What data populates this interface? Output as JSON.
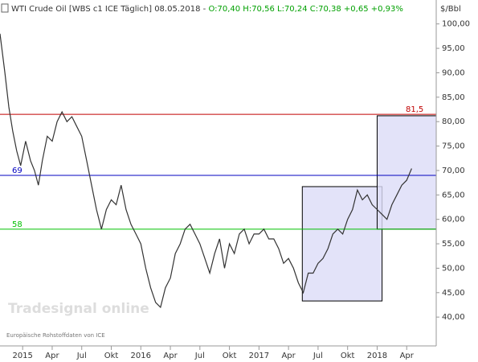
{
  "chart_data": {
    "type": "line",
    "title": "WTI Crude Oil [WBS c1 ICE  Täglich] 08.05.2018 -",
    "quote": "O:70,40 H:70,56 L:70,24 C:70,38 +0,65 +0,93%",
    "y_unit": "$/Bbl",
    "watermark": "Tradesignal online",
    "source": "Europäische Rohstoffdaten von ICE",
    "xlim": [
      -2.3,
      42
    ],
    "ylim": [
      34.1,
      101.6
    ],
    "xticks": [
      {
        "value": 0,
        "label": "2015"
      },
      {
        "value": 3,
        "label": "Apr"
      },
      {
        "value": 6,
        "label": "Jul"
      },
      {
        "value": 9,
        "label": "Okt"
      },
      {
        "value": 12,
        "label": "2016"
      },
      {
        "value": 15,
        "label": "Apr"
      },
      {
        "value": 18,
        "label": "Jul"
      },
      {
        "value": 21,
        "label": "Okt"
      },
      {
        "value": 24,
        "label": "2017"
      },
      {
        "value": 27,
        "label": "Apr"
      },
      {
        "value": 30,
        "label": "Jul"
      },
      {
        "value": 33,
        "label": "Okt"
      },
      {
        "value": 36,
        "label": "2018"
      },
      {
        "value": 39,
        "label": "Apr"
      }
    ],
    "yticks": [
      {
        "value": 40,
        "label": "40,00"
      },
      {
        "value": 45,
        "label": "45,00"
      },
      {
        "value": 50,
        "label": "50,00"
      },
      {
        "value": 55,
        "label": "55,00"
      },
      {
        "value": 60,
        "label": "60,00"
      },
      {
        "value": 65,
        "label": "65,00"
      },
      {
        "value": 70,
        "label": "70,00"
      },
      {
        "value": 75,
        "label": "75,00"
      },
      {
        "value": 80,
        "label": "80,00"
      },
      {
        "value": 85,
        "label": "85,00"
      },
      {
        "value": 90,
        "label": "90,00"
      },
      {
        "value": 95,
        "label": "95,00"
      },
      {
        "value": 100,
        "label": "100,00"
      }
    ],
    "ref_lines": [
      {
        "value": 81.5,
        "label": "81,5",
        "color": "#c00000"
      },
      {
        "value": 69,
        "label": "69",
        "color": "#0000c0"
      },
      {
        "value": 58,
        "label": "58",
        "color": "#00c000"
      }
    ],
    "boxes": [
      {
        "x": [
          28.4,
          36.5
        ],
        "y": [
          43.3,
          66.7
        ]
      },
      {
        "x": [
          36.0,
          42
        ],
        "y": [
          58.0,
          81.2
        ]
      }
    ],
    "series": [
      {
        "name": "WTI Crude Oil",
        "color": "#333333",
        "x": [
          -2.3,
          -1.8,
          -1.4,
          -1,
          -0.6,
          -0.2,
          0.3,
          0.8,
          1.2,
          1.6,
          2,
          2.5,
          3,
          3.5,
          4,
          4.5,
          5,
          5.5,
          6,
          6.5,
          7,
          7.5,
          8,
          8.5,
          9,
          9.5,
          10,
          10.5,
          11,
          11.5,
          12,
          12.5,
          13,
          13.5,
          14,
          14.5,
          15,
          15.5,
          16,
          16.5,
          17,
          17.5,
          18,
          18.5,
          19,
          19.5,
          20,
          20.5,
          21,
          21.5,
          22,
          22.5,
          23,
          23.5,
          24,
          24.5,
          25,
          25.5,
          26,
          26.5,
          27,
          27.5,
          28,
          28.5,
          29,
          29.5,
          30,
          30.5,
          31,
          31.5,
          32,
          32.5,
          33,
          33.5,
          34,
          34.5,
          35,
          35.5,
          36,
          36.5,
          37,
          37.5,
          38,
          38.5,
          39,
          39.5
        ],
        "values": [
          98,
          90,
          83,
          78,
          74,
          71,
          76,
          72,
          70,
          67,
          72,
          77,
          76,
          80,
          82,
          80,
          81,
          79,
          77,
          72,
          67,
          62,
          58,
          62,
          64,
          63,
          67,
          62,
          59,
          57,
          55,
          50,
          46,
          43,
          42,
          46,
          48,
          53,
          55,
          58,
          59,
          57,
          55,
          52,
          49,
          53,
          56,
          50,
          55,
          53,
          57,
          58,
          55,
          57,
          57,
          58,
          56,
          56,
          54,
          51,
          52,
          50,
          47,
          45,
          49,
          49,
          51,
          52,
          54,
          57,
          58,
          57,
          60,
          62,
          66,
          64,
          65,
          63,
          62,
          61,
          60,
          63,
          65,
          67,
          68,
          70.4
        ]
      }
    ]
  }
}
